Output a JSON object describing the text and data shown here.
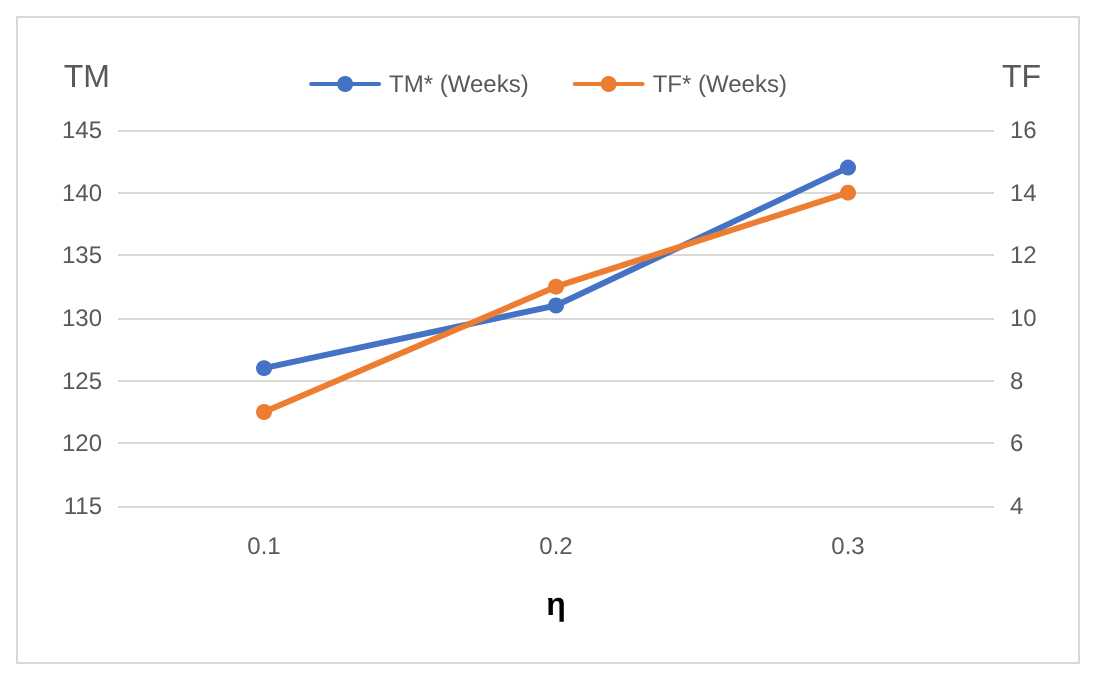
{
  "chart_data": {
    "type": "line",
    "xlabel": "η",
    "ylabel": "TM",
    "y2label": "TF",
    "categories": [
      "0.1",
      "0.2",
      "0.3"
    ],
    "series": [
      {
        "name": "TM* (Weeks)",
        "color": "#4472c4",
        "values": [
          126,
          131,
          142
        ]
      },
      {
        "name": "TF* (Weeks)",
        "color": "#ed7d31",
        "values": [
          7,
          11,
          14
        ],
        "axis": "y2"
      }
    ],
    "ylim": [
      115,
      145
    ],
    "yticks": [
      115,
      120,
      125,
      130,
      135,
      140,
      145
    ],
    "y2lim": [
      4,
      16
    ],
    "y2ticks": [
      4,
      6,
      8,
      10,
      12,
      14,
      16
    ],
    "grid": "y",
    "legend": "top",
    "marker": "circle",
    "line_style": "solid"
  }
}
